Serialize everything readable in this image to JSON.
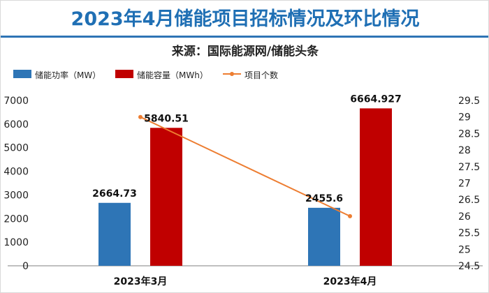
{
  "title": "2023年4月储能项目招标情况及环比情况",
  "subtitle": "来源：国际能源网/储能头条",
  "legend": [
    {
      "label": "储能功率（MW）",
      "color": "#2e75b6",
      "kind": "bar"
    },
    {
      "label": "储能容量（MWh）",
      "color": "#c00000",
      "kind": "bar"
    },
    {
      "label": "项目个数",
      "color": "#ed7d31",
      "kind": "line"
    }
  ],
  "chart_data": {
    "type": "bar",
    "categories": [
      "2023年3月",
      "2023年4月"
    ],
    "series": [
      {
        "name": "储能功率（MW）",
        "values": [
          2664.73,
          2455.6
        ],
        "labels": [
          "2664.73",
          "2455.6"
        ],
        "axis": "left",
        "color": "#2e75b6"
      },
      {
        "name": "储能容量（MWh）",
        "values": [
          5840.51,
          6664.927
        ],
        "labels": [
          "5840.51",
          "6664.927"
        ],
        "axis": "left",
        "color": "#c00000"
      },
      {
        "name": "项目个数",
        "type": "line",
        "values": [
          29,
          26
        ],
        "axis": "right",
        "color": "#ed7d31"
      }
    ],
    "y_left": {
      "min": 0,
      "max": 7000,
      "ticks": [
        "0",
        "1000",
        "2000",
        "3000",
        "4000",
        "5000",
        "6000",
        "7000"
      ]
    },
    "y_right": {
      "min": 24.5,
      "max": 29.5,
      "ticks": [
        "24.5",
        "25",
        "25.5",
        "26",
        "26.5",
        "27",
        "27.5",
        "28",
        "28.5",
        "29",
        "29.5"
      ]
    },
    "grid": false,
    "legend_position": "top-left"
  }
}
